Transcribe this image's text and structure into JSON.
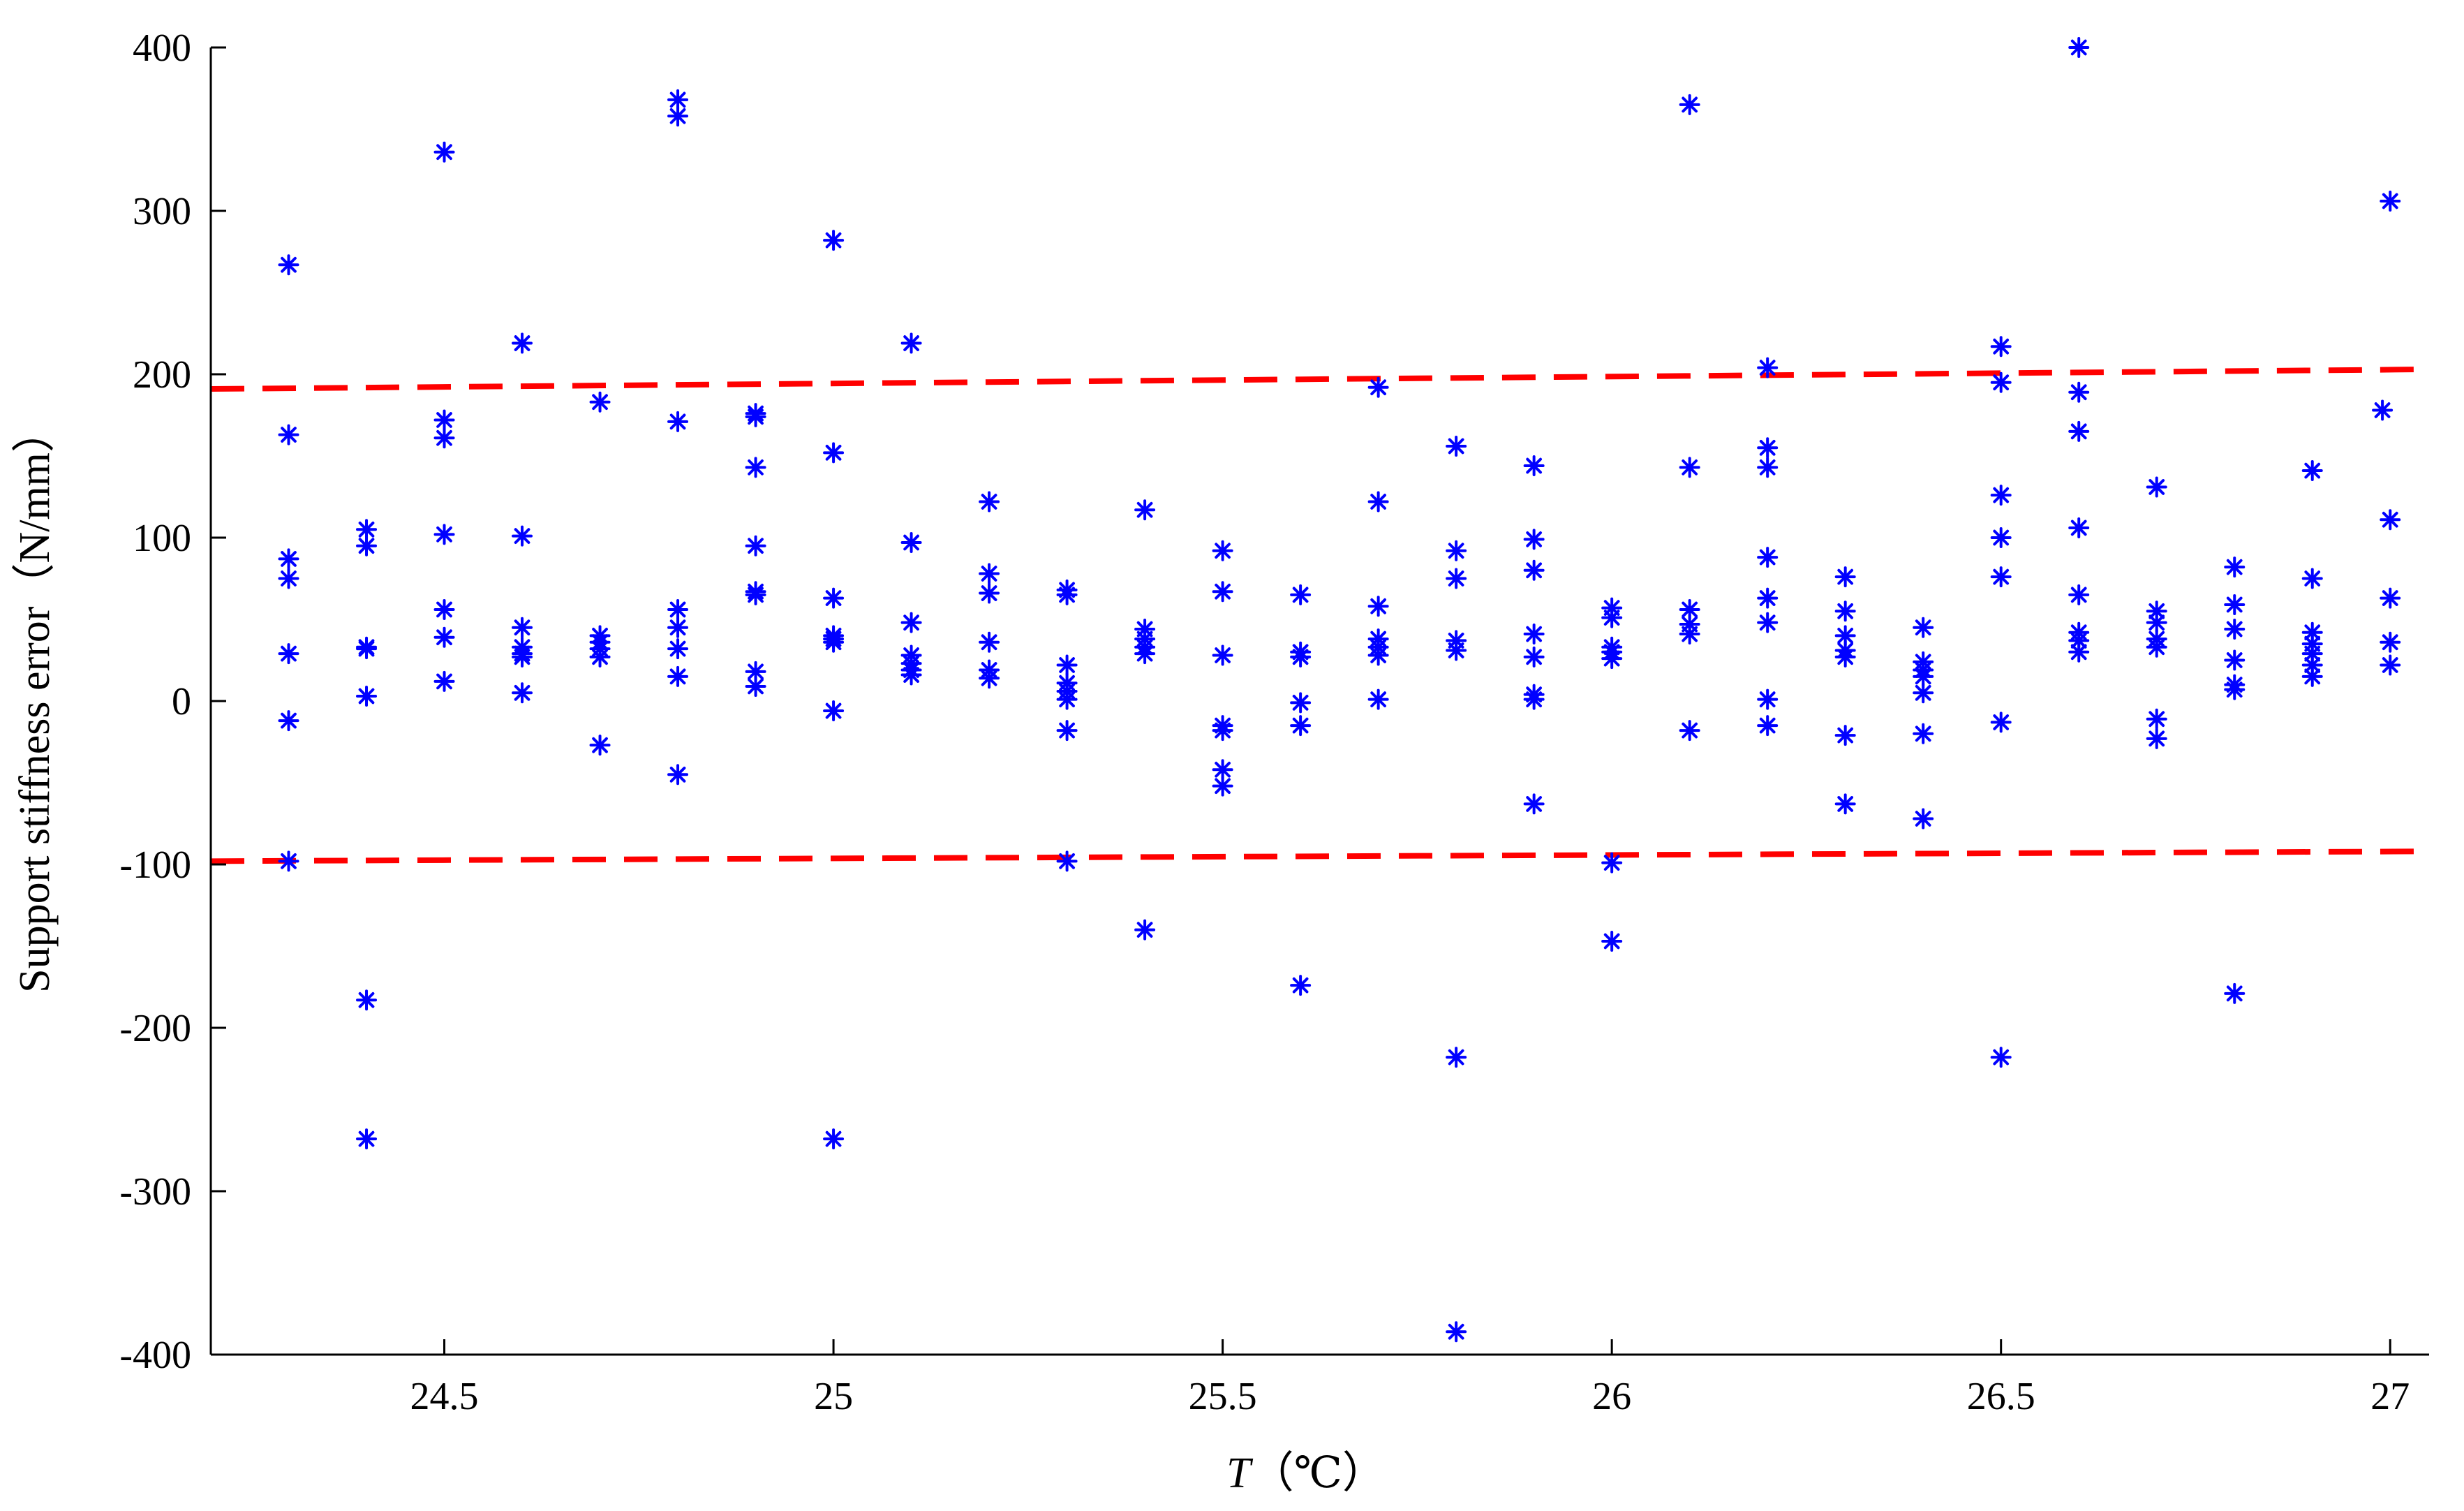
{
  "chart_data": {
    "type": "scatter",
    "title": "",
    "xlabel": {
      "symbol": "T",
      "unit": "（℃）"
    },
    "ylabel": "Support stiffness error（N/mm）",
    "xlim": [
      24.2,
      27.05
    ],
    "ylim": [
      -400,
      400
    ],
    "xticks": [
      24.5,
      25,
      25.5,
      26,
      26.5,
      27
    ],
    "xtick_labels": [
      "24.5",
      "25",
      "25.5",
      "26",
      "26.5",
      "27"
    ],
    "yticks": [
      -400,
      -300,
      -200,
      -100,
      0,
      100,
      200,
      300,
      400
    ],
    "ytick_labels": [
      "-400",
      "-300",
      "-200",
      "-100",
      "0",
      "100",
      "200",
      "300",
      "400"
    ],
    "grid": false,
    "legend": false,
    "series": [
      {
        "marker": "asterisk",
        "color": "#0000ff",
        "points": [
          [
            24.3,
            267
          ],
          [
            24.3,
            163
          ],
          [
            24.3,
            87
          ],
          [
            24.3,
            75
          ],
          [
            24.3,
            29
          ],
          [
            24.3,
            -12
          ],
          [
            24.3,
            -98
          ],
          [
            24.4,
            105
          ],
          [
            24.4,
            95
          ],
          [
            24.4,
            33
          ],
          [
            24.4,
            32
          ],
          [
            24.4,
            3
          ],
          [
            24.4,
            -183
          ],
          [
            24.4,
            -268
          ],
          [
            24.5,
            336
          ],
          [
            24.5,
            172
          ],
          [
            24.5,
            161
          ],
          [
            24.5,
            102
          ],
          [
            24.5,
            56
          ],
          [
            24.5,
            39
          ],
          [
            24.5,
            12
          ],
          [
            24.6,
            219
          ],
          [
            24.6,
            101
          ],
          [
            24.6,
            45
          ],
          [
            24.6,
            33
          ],
          [
            24.6,
            29
          ],
          [
            24.6,
            27
          ],
          [
            24.6,
            5
          ],
          [
            24.7,
            183
          ],
          [
            24.7,
            40
          ],
          [
            24.7,
            36
          ],
          [
            24.7,
            32
          ],
          [
            24.7,
            27
          ],
          [
            24.7,
            -27
          ],
          [
            24.8,
            368
          ],
          [
            24.8,
            358
          ],
          [
            24.8,
            171
          ],
          [
            24.8,
            56
          ],
          [
            24.8,
            45
          ],
          [
            24.8,
            32
          ],
          [
            24.8,
            15
          ],
          [
            24.8,
            -45
          ],
          [
            24.9,
            176
          ],
          [
            24.9,
            174
          ],
          [
            24.9,
            143
          ],
          [
            24.9,
            95
          ],
          [
            24.9,
            67
          ],
          [
            24.9,
            65
          ],
          [
            24.9,
            18
          ],
          [
            24.9,
            9
          ],
          [
            25.0,
            282
          ],
          [
            25.0,
            152
          ],
          [
            25.0,
            63
          ],
          [
            25.0,
            40
          ],
          [
            25.0,
            38
          ],
          [
            25.0,
            36
          ],
          [
            25.0,
            -6
          ],
          [
            25.0,
            -268
          ],
          [
            25.1,
            219
          ],
          [
            25.1,
            97
          ],
          [
            25.1,
            48
          ],
          [
            25.1,
            28
          ],
          [
            25.1,
            23
          ],
          [
            25.1,
            19
          ],
          [
            25.1,
            16
          ],
          [
            25.2,
            122
          ],
          [
            25.2,
            78
          ],
          [
            25.2,
            66
          ],
          [
            25.2,
            36
          ],
          [
            25.2,
            19
          ],
          [
            25.2,
            14
          ],
          [
            25.3,
            68
          ],
          [
            25.3,
            65
          ],
          [
            25.3,
            22
          ],
          [
            25.3,
            11
          ],
          [
            25.3,
            6
          ],
          [
            25.3,
            1
          ],
          [
            25.3,
            -18
          ],
          [
            25.3,
            -98
          ],
          [
            25.4,
            117
          ],
          [
            25.4,
            44
          ],
          [
            25.4,
            38
          ],
          [
            25.4,
            33
          ],
          [
            25.4,
            29
          ],
          [
            25.4,
            -140
          ],
          [
            25.5,
            92
          ],
          [
            25.5,
            67
          ],
          [
            25.5,
            28
          ],
          [
            25.5,
            -15
          ],
          [
            25.5,
            -18
          ],
          [
            25.5,
            -42
          ],
          [
            25.5,
            -52
          ],
          [
            25.6,
            65
          ],
          [
            25.6,
            30
          ],
          [
            25.6,
            27
          ],
          [
            25.6,
            -1
          ],
          [
            25.6,
            -15
          ],
          [
            25.6,
            -174
          ],
          [
            25.7,
            192
          ],
          [
            25.7,
            122
          ],
          [
            25.7,
            58
          ],
          [
            25.7,
            38
          ],
          [
            25.7,
            33
          ],
          [
            25.7,
            28
          ],
          [
            25.7,
            1
          ],
          [
            25.8,
            156
          ],
          [
            25.8,
            92
          ],
          [
            25.8,
            75
          ],
          [
            25.8,
            37
          ],
          [
            25.8,
            31
          ],
          [
            25.8,
            -218
          ],
          [
            25.8,
            -386
          ],
          [
            25.9,
            144
          ],
          [
            25.9,
            99
          ],
          [
            25.9,
            80
          ],
          [
            25.9,
            41
          ],
          [
            25.9,
            27
          ],
          [
            25.9,
            4
          ],
          [
            25.9,
            1
          ],
          [
            25.9,
            -63
          ],
          [
            26.0,
            57
          ],
          [
            26.0,
            51
          ],
          [
            26.0,
            33
          ],
          [
            26.0,
            30
          ],
          [
            26.0,
            26
          ],
          [
            26.0,
            -99
          ],
          [
            26.0,
            -147
          ],
          [
            26.1,
            365
          ],
          [
            26.1,
            143
          ],
          [
            26.1,
            56
          ],
          [
            26.1,
            47
          ],
          [
            26.1,
            41
          ],
          [
            26.1,
            -18
          ],
          [
            26.2,
            204
          ],
          [
            26.2,
            155
          ],
          [
            26.2,
            143
          ],
          [
            26.2,
            88
          ],
          [
            26.2,
            63
          ],
          [
            26.2,
            48
          ],
          [
            26.2,
            1
          ],
          [
            26.2,
            -15
          ],
          [
            26.3,
            76
          ],
          [
            26.3,
            55
          ],
          [
            26.3,
            40
          ],
          [
            26.3,
            31
          ],
          [
            26.3,
            27
          ],
          [
            26.3,
            -21
          ],
          [
            26.3,
            -63
          ],
          [
            26.4,
            45
          ],
          [
            26.4,
            24
          ],
          [
            26.4,
            19
          ],
          [
            26.4,
            15
          ],
          [
            26.4,
            5
          ],
          [
            26.4,
            -20
          ],
          [
            26.4,
            -72
          ],
          [
            26.5,
            217
          ],
          [
            26.5,
            195
          ],
          [
            26.5,
            126
          ],
          [
            26.5,
            100
          ],
          [
            26.5,
            76
          ],
          [
            26.5,
            -13
          ],
          [
            26.5,
            -218
          ],
          [
            26.6,
            400
          ],
          [
            26.6,
            189
          ],
          [
            26.6,
            165
          ],
          [
            26.6,
            106
          ],
          [
            26.6,
            65
          ],
          [
            26.6,
            42
          ],
          [
            26.6,
            37
          ],
          [
            26.6,
            30
          ],
          [
            26.7,
            131
          ],
          [
            26.7,
            55
          ],
          [
            26.7,
            48
          ],
          [
            26.7,
            38
          ],
          [
            26.7,
            33
          ],
          [
            26.7,
            -11
          ],
          [
            26.7,
            -23
          ],
          [
            26.8,
            82
          ],
          [
            26.8,
            59
          ],
          [
            26.8,
            44
          ],
          [
            26.8,
            25
          ],
          [
            26.8,
            10
          ],
          [
            26.8,
            7
          ],
          [
            26.8,
            -179
          ],
          [
            26.9,
            141
          ],
          [
            26.9,
            75
          ],
          [
            26.9,
            42
          ],
          [
            26.9,
            35
          ],
          [
            26.9,
            29
          ],
          [
            26.9,
            22
          ],
          [
            26.9,
            15
          ],
          [
            27.0,
            306
          ],
          [
            26.99,
            178
          ],
          [
            27.0,
            111
          ],
          [
            27.0,
            63
          ],
          [
            27.0,
            36
          ],
          [
            27.0,
            22
          ]
        ]
      }
    ],
    "reference_lines": [
      {
        "style": "dashed",
        "color": "#ff0000",
        "points": [
          [
            24.2,
            191
          ],
          [
            27.05,
            203
          ]
        ]
      },
      {
        "style": "dashed",
        "color": "#ff0000",
        "points": [
          [
            24.2,
            -98
          ],
          [
            27.05,
            -92
          ]
        ]
      }
    ]
  }
}
